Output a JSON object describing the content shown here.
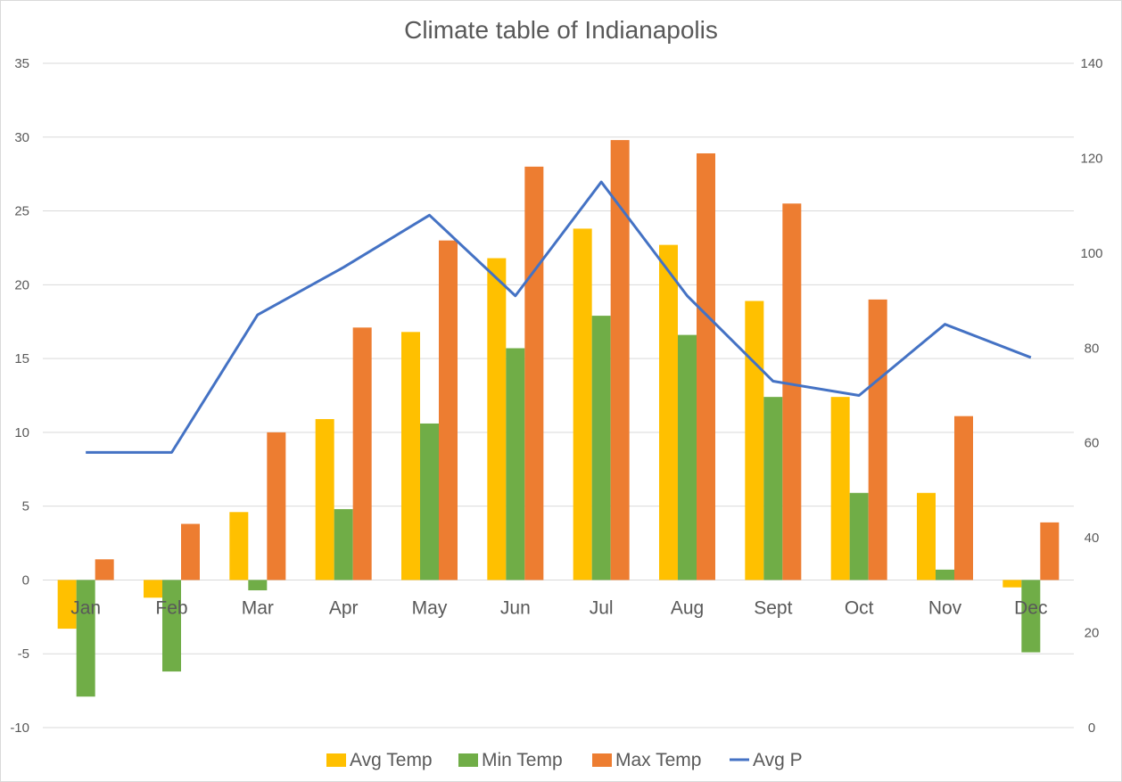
{
  "chart_data": {
    "type": "bar",
    "title": "Climate table of Indianapolis",
    "categories": [
      "Jan",
      "Feb",
      "Mar",
      "Apr",
      "May",
      "Jun",
      "Jul",
      "Aug",
      "Sept",
      "Oct",
      "Nov",
      "Dec"
    ],
    "series": [
      {
        "name": "Avg Temp",
        "type": "bar",
        "axis": "left",
        "color": "#FFC000",
        "values": [
          -3.3,
          -1.2,
          4.6,
          10.9,
          16.8,
          21.8,
          23.8,
          22.7,
          18.9,
          12.4,
          5.9,
          -0.5
        ]
      },
      {
        "name": "Min Temp",
        "type": "bar",
        "axis": "left",
        "color": "#70AD47",
        "values": [
          -7.9,
          -6.2,
          -0.7,
          4.8,
          10.6,
          15.7,
          17.9,
          16.6,
          12.4,
          5.9,
          0.7,
          -4.9
        ]
      },
      {
        "name": "Max Temp",
        "type": "bar",
        "axis": "left",
        "color": "#ED7D31",
        "values": [
          1.4,
          3.8,
          10.0,
          17.1,
          23.0,
          28.0,
          29.8,
          28.9,
          25.5,
          19.0,
          11.1,
          3.9
        ]
      },
      {
        "name": "Avg P",
        "type": "line",
        "axis": "right",
        "color": "#4472C4",
        "values": [
          58,
          58,
          87,
          97,
          108,
          91,
          115,
          91,
          73,
          70,
          85,
          78
        ]
      }
    ],
    "y_left": {
      "min": -10,
      "max": 35,
      "step": 5,
      "ticks": [
        "35",
        "30",
        "25",
        "20",
        "15",
        "10",
        "5",
        "0",
        "-5",
        "-10"
      ]
    },
    "y_right": {
      "min": 0,
      "max": 140,
      "step": 20,
      "ticks": [
        "140",
        "120",
        "100",
        "80",
        "60",
        "40",
        "20",
        "0"
      ]
    },
    "grid": true,
    "legend_position": "bottom"
  }
}
